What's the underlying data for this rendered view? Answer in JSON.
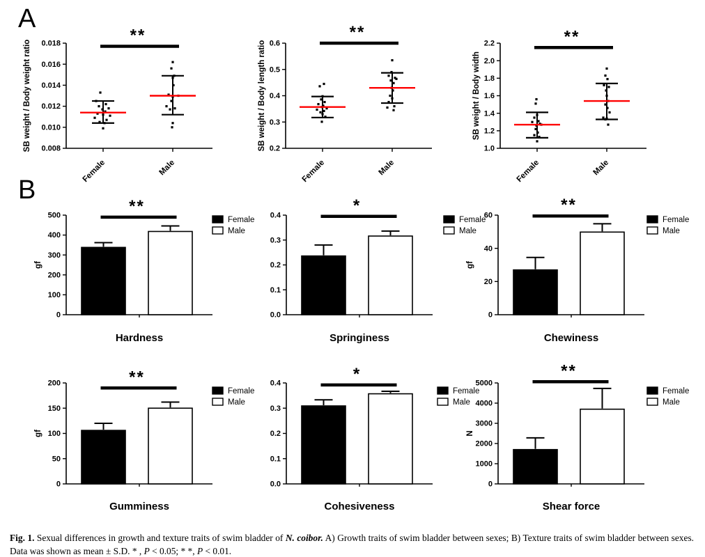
{
  "panels": {
    "a_label": "A",
    "b_label": "B"
  },
  "styles": {
    "mean_line_color": "#ff0000",
    "axis_color": "#000000",
    "female_fill": "#000000",
    "male_fill": "#ffffff"
  },
  "legend": {
    "items": [
      {
        "label": "Female"
      },
      {
        "label": "Male"
      }
    ]
  },
  "caption": {
    "segments": [
      {
        "text": "Fig. 1.",
        "bold": true,
        "italic": false
      },
      {
        "text": "  Sexual differences in growth and texture traits of swim bladder of ",
        "bold": false,
        "italic": false
      },
      {
        "text": "N. coibor.",
        "bold": true,
        "italic": true
      },
      {
        "text": " A) Growth traits of swim bladder between sexes; B) Texture traits of swim bladder between sexes. Data was shown as mean ± S.D. * , ",
        "bold": false,
        "italic": false
      },
      {
        "text": "P",
        "bold": false,
        "italic": true
      },
      {
        "text": " < 0.05; * *, ",
        "bold": false,
        "italic": false
      },
      {
        "text": "P",
        "bold": false,
        "italic": true
      },
      {
        "text": " < 0.01.",
        "bold": false,
        "italic": false
      }
    ]
  },
  "chart_data": [
    {
      "id": "sb-weight-body-weight-ratio",
      "panel": "A",
      "type": "scatter",
      "ylabel": "SB weight / Body weight ratio",
      "ylim": [
        0.008,
        0.018
      ],
      "yticks": [
        {
          "v": 0.008,
          "label": "0.008"
        },
        {
          "v": 0.01,
          "label": "0.010"
        },
        {
          "v": 0.012,
          "label": "0.012"
        },
        {
          "v": 0.014,
          "label": "0.014"
        },
        {
          "v": 0.016,
          "label": "0.016"
        },
        {
          "v": 0.018,
          "label": "0.018"
        }
      ],
      "categories": [
        "Female",
        "Male"
      ],
      "significance": {
        "label": "**",
        "line_value": 0.0177
      },
      "groups": [
        {
          "name": "Female",
          "mean": 0.0114,
          "sd_low": 0.0104,
          "sd_high": 0.0125,
          "points": [
            [
              -4,
              0.0133
            ],
            [
              -10,
              0.0125
            ],
            [
              4,
              0.0122
            ],
            [
              -6,
              0.012
            ],
            [
              8,
              0.0118
            ],
            [
              -1,
              0.0117
            ],
            [
              3,
              0.0115
            ],
            [
              -8,
              0.0113
            ],
            [
              0,
              0.0112
            ],
            [
              10,
              0.0111
            ],
            [
              -12,
              0.0109
            ],
            [
              5,
              0.0107
            ],
            [
              -5,
              0.0105
            ],
            [
              2,
              0.0104
            ],
            [
              0,
              0.0099
            ]
          ]
        },
        {
          "name": "Male",
          "mean": 0.013,
          "sd_low": 0.0112,
          "sd_high": 0.0149,
          "points": [
            [
              0,
              0.0162
            ],
            [
              -2,
              0.0156
            ],
            [
              2,
              0.0149
            ],
            [
              0,
              0.0147
            ],
            [
              1,
              0.014
            ],
            [
              -6,
              0.0131
            ],
            [
              8,
              0.013
            ],
            [
              0,
              0.0129
            ],
            [
              -2,
              0.0125
            ],
            [
              -9,
              0.012
            ],
            [
              3,
              0.0118
            ],
            [
              -4,
              0.0117
            ],
            [
              0,
              0.0104
            ],
            [
              -1,
              0.01
            ]
          ]
        }
      ]
    },
    {
      "id": "sb-weight-body-length-ratio",
      "panel": "A",
      "type": "scatter",
      "ylabel": "SB weight / Body length ratio",
      "ylim": [
        0.2,
        0.6
      ],
      "yticks": [
        {
          "v": 0.2,
          "label": "0.2"
        },
        {
          "v": 0.3,
          "label": "0.3"
        },
        {
          "v": 0.4,
          "label": "0.4"
        },
        {
          "v": 0.5,
          "label": "0.5"
        },
        {
          "v": 0.6,
          "label": "0.6"
        }
      ],
      "categories": [
        "Female",
        "Male"
      ],
      "significance": {
        "label": "**",
        "line_value": 0.6
      },
      "groups": [
        {
          "name": "Female",
          "mean": 0.357,
          "sd_low": 0.317,
          "sd_high": 0.397,
          "points": [
            [
              2,
              0.445
            ],
            [
              -4,
              0.436
            ],
            [
              0,
              0.398
            ],
            [
              -2,
              0.386
            ],
            [
              3,
              0.376
            ],
            [
              -6,
              0.368
            ],
            [
              1,
              0.362
            ],
            [
              -1,
              0.357
            ],
            [
              6,
              0.352
            ],
            [
              -8,
              0.347
            ],
            [
              2,
              0.342
            ],
            [
              -3,
              0.337
            ],
            [
              0,
              0.33
            ],
            [
              4,
              0.32
            ],
            [
              -1,
              0.301
            ]
          ]
        },
        {
          "name": "Male",
          "mean": 0.43,
          "sd_low": 0.372,
          "sd_high": 0.487,
          "points": [
            [
              0,
              0.535
            ],
            [
              -1,
              0.49
            ],
            [
              -5,
              0.476
            ],
            [
              4,
              0.468
            ],
            [
              6,
              0.464
            ],
            [
              -2,
              0.458
            ],
            [
              2,
              0.448
            ],
            [
              -1,
              0.43
            ],
            [
              1,
              0.42
            ],
            [
              -3,
              0.4
            ],
            [
              0,
              0.39
            ],
            [
              -5,
              0.376
            ],
            [
              3,
              0.36
            ],
            [
              -7,
              0.355
            ],
            [
              2,
              0.345
            ]
          ]
        }
      ]
    },
    {
      "id": "sb-weight-body-width",
      "panel": "A",
      "type": "scatter",
      "ylabel": "SB weight / Body width",
      "ylim": [
        1.0,
        2.2
      ],
      "yticks": [
        {
          "v": 1.0,
          "label": "1.0"
        },
        {
          "v": 1.2,
          "label": "1.2"
        },
        {
          "v": 1.4,
          "label": "1.4"
        },
        {
          "v": 1.6,
          "label": "1.6"
        },
        {
          "v": 1.8,
          "label": "1.8"
        },
        {
          "v": 2.0,
          "label": "2.0"
        },
        {
          "v": 2.2,
          "label": "2.2"
        }
      ],
      "categories": [
        "Female",
        "Male"
      ],
      "significance": {
        "label": "**",
        "line_value": 2.15
      },
      "groups": [
        {
          "name": "Female",
          "mean": 1.27,
          "sd_low": 1.12,
          "sd_high": 1.41,
          "points": [
            [
              -1,
              1.56
            ],
            [
              -2,
              1.51
            ],
            [
              0,
              1.38
            ],
            [
              -4,
              1.35
            ],
            [
              2,
              1.31
            ],
            [
              -7,
              1.3
            ],
            [
              4,
              1.28
            ],
            [
              6,
              1.27
            ],
            [
              -1,
              1.26
            ],
            [
              -2,
              1.22
            ],
            [
              1,
              1.18
            ],
            [
              -4,
              1.15
            ],
            [
              3,
              1.13
            ],
            [
              0,
              1.08
            ]
          ]
        },
        {
          "name": "Male",
          "mean": 1.54,
          "sd_low": 1.33,
          "sd_high": 1.74,
          "points": [
            [
              0,
              1.91
            ],
            [
              -2,
              1.83
            ],
            [
              1,
              1.79
            ],
            [
              -4,
              1.72
            ],
            [
              3,
              1.7
            ],
            [
              -1,
              1.66
            ],
            [
              0,
              1.6
            ],
            [
              2,
              1.54
            ],
            [
              -2,
              1.5
            ],
            [
              1,
              1.46
            ],
            [
              4,
              1.41
            ],
            [
              -5,
              1.35
            ],
            [
              0,
              1.34
            ],
            [
              -2,
              1.33
            ],
            [
              2,
              1.27
            ]
          ]
        }
      ]
    },
    {
      "id": "hardness",
      "panel": "B",
      "type": "bar",
      "title": "Hardness",
      "ylabel": "gf",
      "ylim": [
        0,
        500
      ],
      "yticks": [
        {
          "v": 0,
          "label": "0"
        },
        {
          "v": 100,
          "label": "100"
        },
        {
          "v": 200,
          "label": "200"
        },
        {
          "v": 300,
          "label": "300"
        },
        {
          "v": 400,
          "label": "400"
        },
        {
          "v": 500,
          "label": "500"
        }
      ],
      "significance": {
        "label": "**",
        "line_value": 490
      },
      "legend": [
        "Female",
        "Male"
      ],
      "series": [
        {
          "name": "Female",
          "value": 338,
          "err": 24
        },
        {
          "name": "Male",
          "value": 418,
          "err": 28
        }
      ]
    },
    {
      "id": "springiness",
      "panel": "B",
      "type": "bar",
      "title": "Springiness",
      "ylabel": "",
      "ylim": [
        0,
        0.4
      ],
      "yticks": [
        {
          "v": 0.0,
          "label": "0.0"
        },
        {
          "v": 0.1,
          "label": "0.1"
        },
        {
          "v": 0.2,
          "label": "0.2"
        },
        {
          "v": 0.3,
          "label": "0.3"
        },
        {
          "v": 0.4,
          "label": "0.4"
        }
      ],
      "significance": {
        "label": "*",
        "line_value": 0.395
      },
      "legend": [
        "Female",
        "Male"
      ],
      "series": [
        {
          "name": "Female",
          "value": 0.236,
          "err": 0.044
        },
        {
          "name": "Male",
          "value": 0.316,
          "err": 0.02
        }
      ]
    },
    {
      "id": "chewiness",
      "panel": "B",
      "type": "bar",
      "title": "Chewiness",
      "ylabel": "gf",
      "ylim": [
        0,
        60
      ],
      "yticks": [
        {
          "v": 0,
          "label": "0"
        },
        {
          "v": 20,
          "label": "20"
        },
        {
          "v": 40,
          "label": "40"
        },
        {
          "v": 60,
          "label": "60"
        }
      ],
      "significance": {
        "label": "**",
        "line_value": 59.5
      },
      "legend": [
        "Female",
        "Male"
      ],
      "series": [
        {
          "name": "Female",
          "value": 27,
          "err": 7.5
        },
        {
          "name": "Male",
          "value": 49.8,
          "err": 5.0
        }
      ]
    },
    {
      "id": "gumminess",
      "panel": "B",
      "type": "bar",
      "title": "Gumminess",
      "ylabel": "gf",
      "ylim": [
        0,
        200
      ],
      "yticks": [
        {
          "v": 0,
          "label": "0"
        },
        {
          "v": 50,
          "label": "50"
        },
        {
          "v": 100,
          "label": "100"
        },
        {
          "v": 150,
          "label": "150"
        },
        {
          "v": 200,
          "label": "200"
        }
      ],
      "significance": {
        "label": "**",
        "line_value": 190
      },
      "legend": [
        "Female",
        "Male"
      ],
      "series": [
        {
          "name": "Female",
          "value": 106,
          "err": 14
        },
        {
          "name": "Male",
          "value": 150,
          "err": 12
        }
      ]
    },
    {
      "id": "cohesiveness",
      "panel": "B",
      "type": "bar",
      "title": "Cohesiveness",
      "ylabel": "",
      "ylim": [
        0,
        0.4
      ],
      "yticks": [
        {
          "v": 0.0,
          "label": "0.0"
        },
        {
          "v": 0.1,
          "label": "0.1"
        },
        {
          "v": 0.2,
          "label": "0.2"
        },
        {
          "v": 0.3,
          "label": "0.3"
        },
        {
          "v": 0.4,
          "label": "0.4"
        }
      ],
      "significance": {
        "label": "*",
        "line_value": 0.392
      },
      "legend": [
        "Female",
        "Male"
      ],
      "series": [
        {
          "name": "Female",
          "value": 0.309,
          "err": 0.024
        },
        {
          "name": "Male",
          "value": 0.357,
          "err": 0.01
        }
      ]
    },
    {
      "id": "shear-force",
      "panel": "B",
      "type": "bar",
      "title": "Shear force",
      "ylabel": "N",
      "ylim": [
        0,
        5000
      ],
      "yticks": [
        {
          "v": 0,
          "label": "0"
        },
        {
          "v": 1000,
          "label": "1000"
        },
        {
          "v": 2000,
          "label": "2000"
        },
        {
          "v": 3000,
          "label": "3000"
        },
        {
          "v": 4000,
          "label": "4000"
        },
        {
          "v": 5000,
          "label": "5000"
        }
      ],
      "significance": {
        "label": "**",
        "line_value": 5060
      },
      "legend": [
        "Female",
        "Male"
      ],
      "series": [
        {
          "name": "Female",
          "value": 1700,
          "err": 580
        },
        {
          "name": "Male",
          "value": 3700,
          "err": 1030
        }
      ]
    }
  ]
}
